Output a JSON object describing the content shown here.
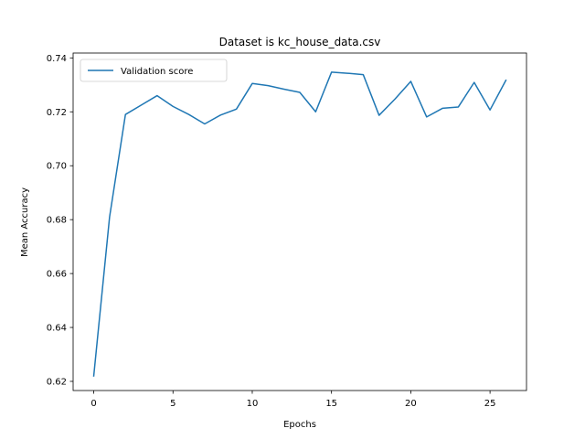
{
  "chart_data": {
    "type": "line",
    "title": "Dataset is kc_house_data.csv",
    "xlabel": "Epochs",
    "ylabel": "Mean Accuracy",
    "xlim": [
      -1.3,
      27.3
    ],
    "ylim": [
      0.6166,
      0.7418
    ],
    "xticks": [
      0,
      5,
      10,
      15,
      20,
      25
    ],
    "xtick_labels": [
      "0",
      "5",
      "10",
      "15",
      "20",
      "25"
    ],
    "yticks": [
      0.62,
      0.64,
      0.66,
      0.68,
      0.7,
      0.72,
      0.74
    ],
    "ytick_labels": [
      "0.62",
      "0.64",
      "0.66",
      "0.68",
      "0.70",
      "0.72",
      "0.74"
    ],
    "grid": false,
    "legend_position": "upper left",
    "series": [
      {
        "name": "Validation score",
        "color": "#1f77b4",
        "x": [
          0,
          1,
          2,
          3,
          4,
          5,
          6,
          7,
          8,
          9,
          10,
          11,
          12,
          13,
          14,
          15,
          16,
          17,
          18,
          19,
          20,
          21,
          22,
          23,
          24,
          25,
          26
        ],
        "y": [
          0.622,
          0.681,
          0.719,
          0.7225,
          0.726,
          0.722,
          0.719,
          0.7155,
          0.7188,
          0.721,
          0.7305,
          0.7297,
          0.7284,
          0.7272,
          0.72,
          0.7347,
          0.7343,
          0.7338,
          0.7187,
          0.7247,
          0.7313,
          0.7181,
          0.7213,
          0.7218,
          0.7309,
          0.7207,
          0.7317
        ]
      }
    ]
  }
}
